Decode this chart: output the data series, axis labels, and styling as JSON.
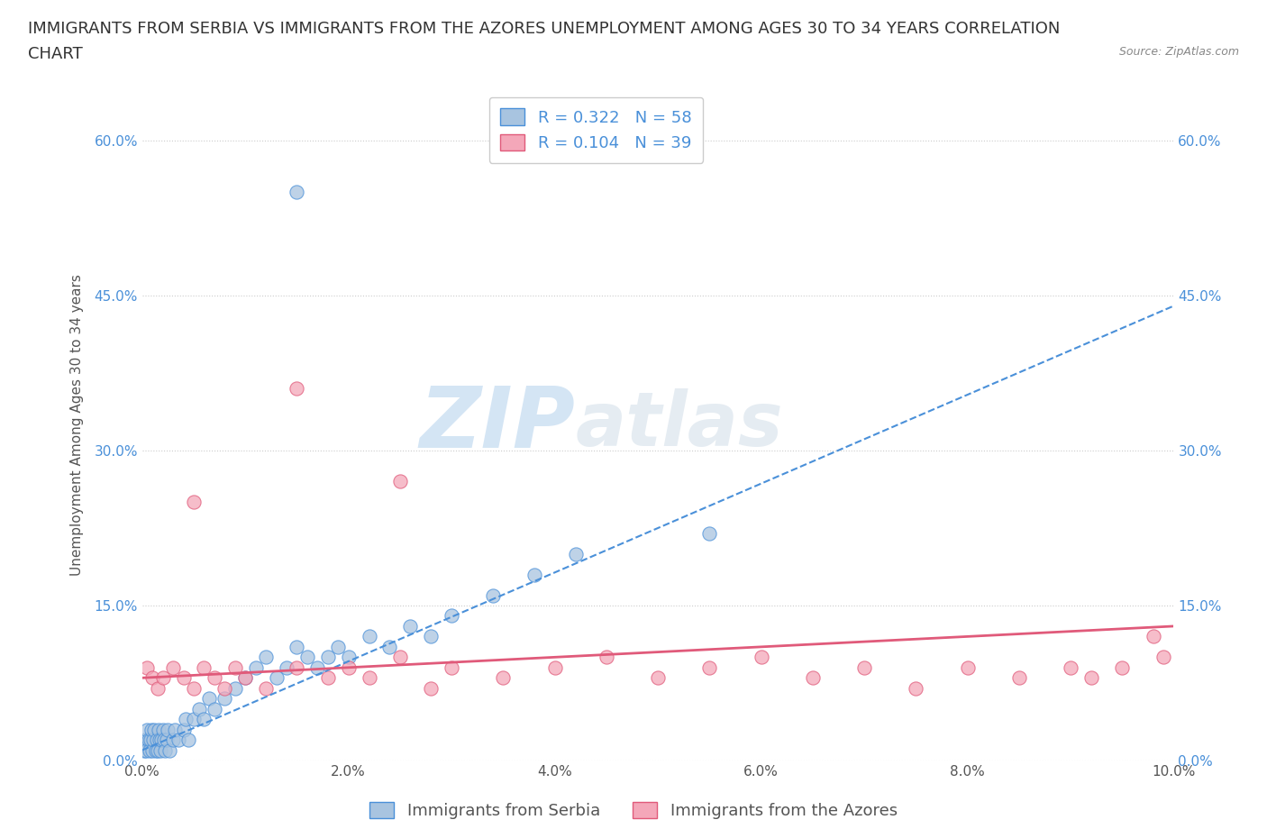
{
  "title_line1": "IMMIGRANTS FROM SERBIA VS IMMIGRANTS FROM THE AZORES UNEMPLOYMENT AMONG AGES 30 TO 34 YEARS CORRELATION",
  "title_line2": "CHART",
  "source": "Source: ZipAtlas.com",
  "ylabel": "Unemployment Among Ages 30 to 34 years",
  "serbia_color": "#a8c4e0",
  "azores_color": "#f4a7b9",
  "serbia_line_color": "#4a90d9",
  "azores_line_color": "#e05a7a",
  "serbia_R": 0.322,
  "serbia_N": 58,
  "azores_R": 0.104,
  "azores_N": 39,
  "serbia_label": "Immigrants from Serbia",
  "azores_label": "Immigrants from the Azores",
  "watermark_zip": "ZIP",
  "watermark_atlas": "atlas",
  "xlim": [
    0.0,
    0.1
  ],
  "ylim": [
    0.0,
    0.65
  ],
  "x_ticks": [
    0.0,
    0.02,
    0.04,
    0.06,
    0.08,
    0.1
  ],
  "x_tick_labels": [
    "0.0%",
    "2.0%",
    "4.0%",
    "6.0%",
    "8.0%",
    "10.0%"
  ],
  "y_ticks": [
    0.0,
    0.15,
    0.3,
    0.45,
    0.6
  ],
  "y_tick_labels": [
    "0.0%",
    "15.0%",
    "30.0%",
    "45.0%",
    "60.0%"
  ],
  "serbia_x": [
    0.0002,
    0.0003,
    0.0004,
    0.0005,
    0.0006,
    0.0007,
    0.0008,
    0.0009,
    0.001,
    0.0011,
    0.0012,
    0.0013,
    0.0014,
    0.0015,
    0.0016,
    0.0017,
    0.0018,
    0.0019,
    0.002,
    0.0021,
    0.0022,
    0.0024,
    0.0025,
    0.0026,
    0.003,
    0.0032,
    0.0035,
    0.004,
    0.0042,
    0.0045,
    0.005,
    0.0055,
    0.006,
    0.0065,
    0.007,
    0.008,
    0.009,
    0.01,
    0.011,
    0.012,
    0.013,
    0.014,
    0.015,
    0.016,
    0.017,
    0.018,
    0.019,
    0.02,
    0.022,
    0.024,
    0.026,
    0.028,
    0.03,
    0.034,
    0.038,
    0.042,
    0.015,
    0.055
  ],
  "serbia_y": [
    0.01,
    0.02,
    0.01,
    0.03,
    0.02,
    0.01,
    0.02,
    0.03,
    0.01,
    0.02,
    0.03,
    0.01,
    0.02,
    0.01,
    0.03,
    0.02,
    0.01,
    0.02,
    0.03,
    0.02,
    0.01,
    0.02,
    0.03,
    0.01,
    0.02,
    0.03,
    0.02,
    0.03,
    0.04,
    0.02,
    0.04,
    0.05,
    0.04,
    0.06,
    0.05,
    0.06,
    0.07,
    0.08,
    0.09,
    0.1,
    0.08,
    0.09,
    0.11,
    0.1,
    0.09,
    0.1,
    0.11,
    0.1,
    0.12,
    0.11,
    0.13,
    0.12,
    0.14,
    0.16,
    0.18,
    0.2,
    0.55,
    0.22
  ],
  "azores_x": [
    0.0005,
    0.001,
    0.0015,
    0.002,
    0.003,
    0.004,
    0.005,
    0.006,
    0.007,
    0.008,
    0.009,
    0.01,
    0.012,
    0.015,
    0.018,
    0.02,
    0.022,
    0.025,
    0.028,
    0.03,
    0.035,
    0.04,
    0.045,
    0.05,
    0.055,
    0.06,
    0.065,
    0.07,
    0.075,
    0.08,
    0.085,
    0.09,
    0.092,
    0.095,
    0.098,
    0.099,
    0.015,
    0.025,
    0.005
  ],
  "azores_y": [
    0.09,
    0.08,
    0.07,
    0.08,
    0.09,
    0.08,
    0.07,
    0.09,
    0.08,
    0.07,
    0.09,
    0.08,
    0.07,
    0.09,
    0.08,
    0.09,
    0.08,
    0.1,
    0.07,
    0.09,
    0.08,
    0.09,
    0.1,
    0.08,
    0.09,
    0.1,
    0.08,
    0.09,
    0.07,
    0.09,
    0.08,
    0.09,
    0.08,
    0.09,
    0.12,
    0.1,
    0.36,
    0.27,
    0.25
  ],
  "background_color": "#ffffff",
  "grid_color": "#cccccc",
  "title_fontsize": 13,
  "axis_label_fontsize": 11,
  "tick_fontsize": 11,
  "legend_fontsize": 13
}
